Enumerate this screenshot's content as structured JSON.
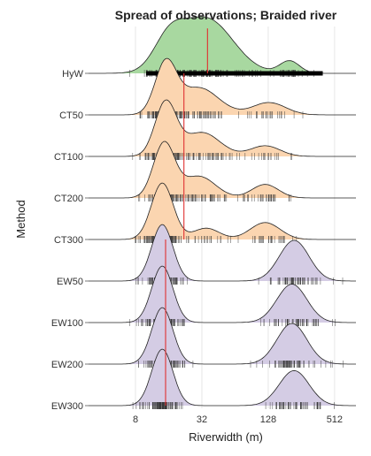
{
  "chart_data": {
    "type": "ridgeline",
    "title": "Spread of observations; Braided river",
    "xlabel": "Riverwidth (m)",
    "ylabel": "Method",
    "x_scale": "log2",
    "xlim": [
      3,
      800
    ],
    "x_ticks": [
      8,
      32,
      128,
      512
    ],
    "x_tick_labels": [
      "8",
      "32",
      "128",
      "512"
    ],
    "grid": true,
    "legend": "none",
    "colors": {
      "HyW": "#a8d8a0",
      "CT": "#fbd5b0",
      "EW": "#d4cce4",
      "median_line": "#e03030",
      "outline": "#222222",
      "rug": "#333333",
      "bar": "#000000"
    },
    "series": [
      {
        "name": "HyW",
        "group": "HyW",
        "median": 36,
        "components": [
          {
            "center": 16,
            "sd": 0.45,
            "weight": 1.0
          },
          {
            "center": 35,
            "sd": 0.8,
            "weight": 2.0
          },
          {
            "center": 200,
            "sd": 0.3,
            "weight": 0.45
          }
        ],
        "range": [
          10,
          400
        ]
      },
      {
        "name": "CT50",
        "group": "CT",
        "median": 22,
        "components": [
          {
            "center": 15,
            "sd": 0.32,
            "weight": 1.0
          },
          {
            "center": 30,
            "sd": 0.6,
            "weight": 0.55
          },
          {
            "center": 130,
            "sd": 0.5,
            "weight": 0.25
          }
        ]
      },
      {
        "name": "CT100",
        "group": "CT",
        "median": 22,
        "components": [
          {
            "center": 15,
            "sd": 0.32,
            "weight": 1.0
          },
          {
            "center": 32,
            "sd": 0.55,
            "weight": 0.45
          },
          {
            "center": 120,
            "sd": 0.45,
            "weight": 0.2
          }
        ]
      },
      {
        "name": "CT200",
        "group": "CT",
        "median": 22,
        "components": [
          {
            "center": 14.5,
            "sd": 0.32,
            "weight": 1.0
          },
          {
            "center": 30,
            "sd": 0.5,
            "weight": 0.4
          },
          {
            "center": 120,
            "sd": 0.4,
            "weight": 0.25
          }
        ]
      },
      {
        "name": "CT300",
        "group": "CT",
        "median": 22,
        "components": [
          {
            "center": 14,
            "sd": 0.33,
            "weight": 1.0
          },
          {
            "center": 35,
            "sd": 0.4,
            "weight": 0.2
          },
          {
            "center": 120,
            "sd": 0.45,
            "weight": 0.3
          }
        ]
      },
      {
        "name": "EW50",
        "group": "EW",
        "median": 15,
        "components": [
          {
            "center": 14,
            "sd": 0.32,
            "weight": 1.0
          },
          {
            "center": 220,
            "sd": 0.45,
            "weight": 0.72
          }
        ]
      },
      {
        "name": "EW100",
        "group": "EW",
        "median": 15,
        "components": [
          {
            "center": 14,
            "sd": 0.32,
            "weight": 1.0
          },
          {
            "center": 210,
            "sd": 0.45,
            "weight": 0.68
          }
        ]
      },
      {
        "name": "EW200",
        "group": "EW",
        "median": 15,
        "components": [
          {
            "center": 14,
            "sd": 0.32,
            "weight": 1.0
          },
          {
            "center": 210,
            "sd": 0.45,
            "weight": 0.72
          }
        ]
      },
      {
        "name": "EW300",
        "group": "EW",
        "median": 15,
        "components": [
          {
            "center": 14,
            "sd": 0.32,
            "weight": 1.0
          },
          {
            "center": 220,
            "sd": 0.45,
            "weight": 0.62
          }
        ]
      }
    ]
  }
}
